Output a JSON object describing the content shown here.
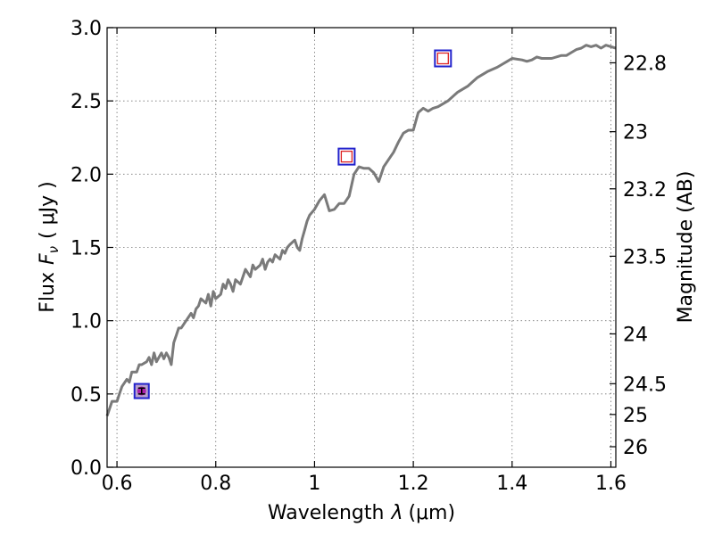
{
  "chart_data": {
    "type": "line",
    "xlabel_pre": "Wavelength",
    "xlabel_sym": "λ",
    "xlabel_unit": "(μm)",
    "ylabel_pre": "Flux",
    "ylabel_sym": "F",
    "ylabel_sub": "ν",
    "ylabel_unit": "( μJy )",
    "y2label": "Magnitude (AB)",
    "xlim": [
      0.58,
      1.61
    ],
    "ylim": [
      0.0,
      3.0
    ],
    "x_ticks": [
      0.6,
      0.8,
      1.0,
      1.2,
      1.4,
      1.6
    ],
    "x_tick_labels": [
      "0.6",
      "0.8",
      "1",
      "1.2",
      "1.4",
      "1.6"
    ],
    "y_ticks": [
      0.0,
      0.5,
      1.0,
      1.5,
      2.0,
      2.5,
      3.0
    ],
    "y_tick_labels": [
      "0.0",
      "0.5",
      "1.0",
      "1.5",
      "2.0",
      "2.5",
      "3.0"
    ],
    "y2_ticks": [
      {
        "label": "22.8",
        "flux": 2.76
      },
      {
        "label": "23",
        "flux": 2.29
      },
      {
        "label": "23.2",
        "flux": 1.9
      },
      {
        "label": "23.5",
        "flux": 1.44
      },
      {
        "label": "24",
        "flux": 0.91
      },
      {
        "label": "24.5",
        "flux": 0.57
      },
      {
        "label": "25",
        "flux": 0.36
      },
      {
        "label": "26",
        "flux": 0.14
      }
    ],
    "grid": true,
    "series": [
      {
        "type": "line",
        "color": "#7a7a7a",
        "x": [
          0.58,
          0.59,
          0.6,
          0.605,
          0.61,
          0.62,
          0.625,
          0.63,
          0.64,
          0.645,
          0.65,
          0.66,
          0.665,
          0.67,
          0.675,
          0.68,
          0.685,
          0.69,
          0.695,
          0.7,
          0.705,
          0.71,
          0.715,
          0.72,
          0.725,
          0.73,
          0.74,
          0.75,
          0.755,
          0.76,
          0.765,
          0.77,
          0.78,
          0.785,
          0.79,
          0.795,
          0.8,
          0.81,
          0.815,
          0.82,
          0.825,
          0.83,
          0.835,
          0.84,
          0.85,
          0.855,
          0.86,
          0.87,
          0.875,
          0.88,
          0.89,
          0.895,
          0.9,
          0.905,
          0.91,
          0.915,
          0.92,
          0.93,
          0.935,
          0.94,
          0.945,
          0.95,
          0.96,
          0.965,
          0.97,
          0.975,
          0.98,
          0.985,
          0.99,
          1.0,
          1.01,
          1.02,
          1.03,
          1.04,
          1.05,
          1.06,
          1.07,
          1.08,
          1.09,
          1.1,
          1.11,
          1.12,
          1.13,
          1.14,
          1.15,
          1.16,
          1.17,
          1.18,
          1.19,
          1.2,
          1.21,
          1.22,
          1.23,
          1.24,
          1.25,
          1.27,
          1.29,
          1.31,
          1.32,
          1.33,
          1.35,
          1.37,
          1.38,
          1.39,
          1.4,
          1.42,
          1.43,
          1.44,
          1.45,
          1.46,
          1.48,
          1.5,
          1.51,
          1.52,
          1.53,
          1.54,
          1.55,
          1.56,
          1.57,
          1.58,
          1.59,
          1.61
        ],
        "y": [
          0.35,
          0.45,
          0.45,
          0.5,
          0.55,
          0.6,
          0.58,
          0.65,
          0.65,
          0.7,
          0.7,
          0.72,
          0.75,
          0.7,
          0.78,
          0.72,
          0.75,
          0.78,
          0.74,
          0.78,
          0.75,
          0.7,
          0.85,
          0.9,
          0.95,
          0.95,
          1.0,
          1.05,
          1.02,
          1.08,
          1.1,
          1.15,
          1.12,
          1.18,
          1.1,
          1.2,
          1.15,
          1.18,
          1.25,
          1.22,
          1.28,
          1.25,
          1.2,
          1.28,
          1.25,
          1.3,
          1.35,
          1.3,
          1.38,
          1.35,
          1.38,
          1.42,
          1.35,
          1.4,
          1.42,
          1.4,
          1.45,
          1.42,
          1.48,
          1.46,
          1.5,
          1.52,
          1.55,
          1.5,
          1.48,
          1.56,
          1.62,
          1.68,
          1.72,
          1.76,
          1.82,
          1.86,
          1.75,
          1.76,
          1.8,
          1.8,
          1.85,
          2.0,
          2.05,
          2.04,
          2.04,
          2.01,
          1.95,
          2.05,
          2.1,
          2.15,
          2.22,
          2.28,
          2.3,
          2.3,
          2.42,
          2.45,
          2.43,
          2.45,
          2.46,
          2.5,
          2.56,
          2.6,
          2.63,
          2.66,
          2.7,
          2.73,
          2.75,
          2.77,
          2.79,
          2.78,
          2.77,
          2.78,
          2.8,
          2.79,
          2.79,
          2.81,
          2.81,
          2.83,
          2.85,
          2.86,
          2.88,
          2.87,
          2.88,
          2.86,
          2.88,
          2.86
        ]
      },
      {
        "type": "points",
        "marker": "square",
        "stroke": "#2222cc",
        "fill": "#ffffff",
        "inner_stroke": "#dd2222",
        "x": [
          1.065,
          1.26
        ],
        "y": [
          2.12,
          2.79
        ]
      },
      {
        "type": "points",
        "marker": "square-dot-errorbar",
        "stroke": "#2222cc",
        "fill": "#b8a0cc",
        "dot_color": "#aa22aa",
        "x": [
          0.65
        ],
        "y": [
          0.52
        ],
        "yerr": [
          0.02
        ]
      }
    ]
  }
}
